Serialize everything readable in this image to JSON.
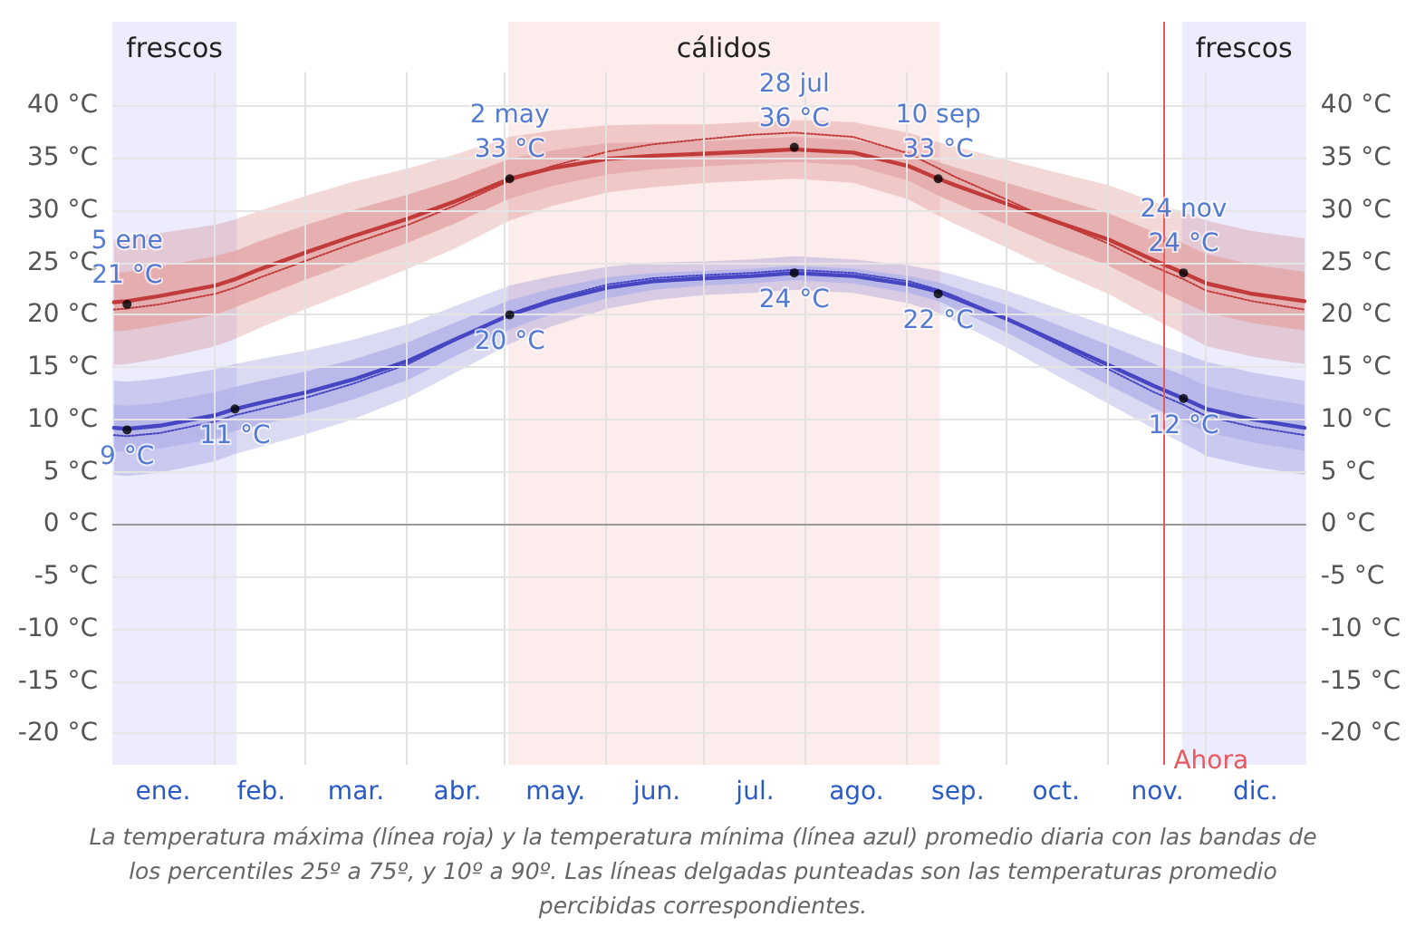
{
  "chart_data": {
    "type": "line",
    "x": [
      "--01-01",
      "--01-05",
      "--01-15",
      "--02-01",
      "--02-07",
      "--02-15",
      "--03-01",
      "--03-15",
      "--04-01",
      "--04-15",
      "--05-02",
      "--05-15",
      "--06-01",
      "--06-15",
      "--07-01",
      "--07-15",
      "--07-28",
      "--08-15",
      "--09-01",
      "--09-10",
      "--09-15",
      "--10-01",
      "--10-15",
      "--11-01",
      "--11-15",
      "--11-24",
      "--12-01",
      "--12-15",
      "--12-31"
    ],
    "series": [
      {
        "color": "#c23b3b",
        "values": [
          21.2,
          21.3,
          21.8,
          22.8,
          23.4,
          24.4,
          26.0,
          27.5,
          29.2,
          30.8,
          33.0,
          34.0,
          34.9,
          35.2,
          35.4,
          35.6,
          35.8,
          35.5,
          34.2,
          33.0,
          32.4,
          30.6,
          29.0,
          27.2,
          25.2,
          24.0,
          23.0,
          22.0,
          21.3
        ],
        "lower": [
          15.2,
          15.3,
          15.8,
          17.0,
          17.7,
          18.8,
          20.6,
          22.3,
          24.4,
          26.3,
          29.0,
          30.4,
          31.7,
          32.2,
          32.6,
          32.8,
          33.0,
          32.6,
          31.0,
          29.5,
          28.7,
          26.4,
          24.3,
          22.0,
          19.6,
          18.2,
          17.0,
          16.0,
          15.3
        ],
        "upper": [
          27.2,
          27.3,
          27.8,
          28.6,
          29.1,
          30.0,
          31.4,
          32.7,
          34.0,
          35.3,
          37.0,
          37.6,
          38.1,
          38.2,
          38.2,
          38.4,
          38.6,
          38.4,
          37.4,
          36.5,
          36.1,
          34.8,
          33.7,
          32.4,
          30.8,
          29.8,
          29.0,
          28.0,
          27.3
        ]
      },
      {
        "color": "#e4a9a9",
        "values": [
          null,
          null,
          null,
          null,
          null,
          null,
          null,
          null,
          null,
          null,
          null,
          null,
          null,
          null,
          null,
          null,
          null,
          null,
          null,
          null,
          null,
          null,
          null,
          null,
          null,
          null,
          null,
          null,
          null
        ],
        "lower": [
          18.4,
          18.5,
          19.0,
          20.0,
          20.7,
          21.7,
          23.4,
          25.0,
          26.9,
          28.7,
          31.1,
          32.3,
          33.4,
          33.9,
          34.2,
          34.4,
          34.6,
          34.3,
          32.8,
          31.4,
          30.7,
          28.6,
          26.7,
          24.7,
          22.5,
          21.2,
          20.2,
          19.2,
          18.5
        ],
        "upper": [
          24.0,
          24.1,
          24.6,
          25.6,
          26.1,
          27.1,
          28.6,
          30.0,
          31.5,
          32.9,
          34.9,
          35.7,
          36.4,
          36.5,
          36.6,
          36.8,
          37.0,
          36.7,
          35.6,
          34.6,
          34.1,
          32.6,
          31.3,
          29.7,
          27.9,
          26.8,
          25.8,
          24.8,
          24.1
        ]
      },
      {
        "color": "#4646c2",
        "values": [
          9.2,
          9.1,
          9.4,
          10.4,
          11.0,
          11.6,
          12.6,
          13.8,
          15.6,
          17.6,
          20.0,
          21.3,
          22.6,
          23.2,
          23.5,
          23.7,
          24.0,
          23.7,
          22.9,
          22.2,
          21.6,
          19.6,
          17.6,
          15.2,
          13.2,
          12.0,
          11.0,
          10.0,
          9.2
        ],
        "lower": [
          4.7,
          4.6,
          4.9,
          6.0,
          6.7,
          7.4,
          8.6,
          10.0,
          12.1,
          14.4,
          17.2,
          18.9,
          20.6,
          21.4,
          21.9,
          22.1,
          22.4,
          22.1,
          21.1,
          20.2,
          19.4,
          16.9,
          14.4,
          11.5,
          9.1,
          7.7,
          6.5,
          5.5,
          4.7
        ],
        "upper": [
          13.7,
          13.6,
          13.9,
          14.8,
          15.3,
          15.8,
          16.6,
          17.6,
          19.1,
          20.8,
          22.8,
          23.7,
          24.6,
          25.0,
          25.1,
          25.3,
          25.6,
          25.3,
          24.7,
          24.2,
          23.8,
          22.3,
          20.8,
          18.9,
          17.3,
          16.3,
          15.5,
          14.5,
          13.7
        ]
      },
      {
        "color": "#b4b4e8",
        "values": [
          null,
          null,
          null,
          null,
          null,
          null,
          null,
          null,
          null,
          null,
          null,
          null,
          null,
          null,
          null,
          null,
          null,
          null,
          null,
          null,
          null,
          null,
          null,
          null,
          null,
          null,
          null,
          null,
          null
        ],
        "lower": [
          7.0,
          6.9,
          7.2,
          8.2,
          8.9,
          9.5,
          10.6,
          11.9,
          13.8,
          16.0,
          18.6,
          20.1,
          21.6,
          22.4,
          22.8,
          23.0,
          23.3,
          23.0,
          22.1,
          21.3,
          20.6,
          18.3,
          16.0,
          13.3,
          11.1,
          9.8,
          8.8,
          7.8,
          7.0
        ],
        "upper": [
          11.4,
          11.3,
          11.6,
          12.6,
          13.1,
          13.7,
          14.6,
          15.7,
          17.4,
          19.2,
          21.4,
          22.5,
          23.6,
          24.0,
          24.2,
          24.4,
          24.7,
          24.4,
          23.7,
          23.1,
          22.6,
          20.9,
          19.2,
          17.1,
          15.3,
          14.2,
          13.2,
          12.2,
          11.4
        ]
      },
      {
        "color": "#c23b3b",
        "line_style": "dotted",
        "values": [
          20.5,
          20.6,
          21.0,
          22.0,
          22.6,
          23.6,
          25.2,
          26.8,
          28.6,
          30.4,
          32.8,
          34.2,
          35.6,
          36.3,
          36.8,
          37.2,
          37.4,
          37.0,
          35.4,
          34.0,
          33.2,
          31.0,
          29.0,
          26.8,
          24.6,
          23.4,
          22.3,
          21.3,
          20.5
        ]
      },
      {
        "color": "#4646c2",
        "line_style": "dotted",
        "values": [
          8.5,
          8.4,
          8.7,
          9.8,
          10.4,
          11.0,
          12.1,
          13.4,
          15.3,
          17.5,
          20.1,
          21.5,
          22.9,
          23.5,
          23.8,
          24.0,
          24.3,
          24.0,
          23.2,
          22.4,
          21.8,
          19.6,
          17.4,
          14.8,
          12.6,
          11.4,
          10.3,
          9.3,
          8.5
        ]
      }
    ],
    "xlim": [
      "--01-01",
      "--12-31"
    ],
    "xticks": [
      {
        "value": "--01-16",
        "label": "ene."
      },
      {
        "value": "--02-01",
        "label": null
      },
      {
        "value": "--02-15",
        "label": "feb."
      },
      {
        "value": "--03-01",
        "label": null
      },
      {
        "value": "--03-16",
        "label": "mar."
      },
      {
        "value": "--04-01",
        "label": null
      },
      {
        "value": "--04-16",
        "label": "abr."
      },
      {
        "value": "--05-01",
        "label": null
      },
      {
        "value": "--05-16",
        "label": "may."
      },
      {
        "value": "--06-01",
        "label": null
      },
      {
        "value": "--06-16",
        "label": "jun."
      },
      {
        "value": "--07-01",
        "label": null
      },
      {
        "value": "--07-16",
        "label": "jul."
      },
      {
        "value": "--08-01",
        "label": null
      },
      {
        "value": "--08-16",
        "label": "ago."
      },
      {
        "value": "--09-01",
        "label": null
      },
      {
        "value": "--09-16",
        "label": "sep."
      },
      {
        "value": "--10-01",
        "label": null
      },
      {
        "value": "--10-16",
        "label": "oct."
      },
      {
        "value": "--11-01",
        "label": null
      },
      {
        "value": "--11-16",
        "label": "nov."
      },
      {
        "value": "--12-01",
        "label": null
      },
      {
        "value": "--12-16",
        "label": "dic."
      }
    ],
    "ylim": [
      -23,
      48
    ],
    "yticks": [
      {
        "value": -20,
        "label": "-20 °C"
      },
      {
        "value": -15,
        "label": "-15 °C"
      },
      {
        "value": -10,
        "label": "-10 °C"
      },
      {
        "value": -5,
        "label": "-5 °C"
      },
      {
        "value": 0,
        "label": "0 °C"
      },
      {
        "value": 5,
        "label": "5 °C"
      },
      {
        "value": 10,
        "label": "10 °C"
      },
      {
        "value": 15,
        "label": "15 °C"
      },
      {
        "value": 20,
        "label": "20 °C"
      },
      {
        "value": 25,
        "label": "25 °C"
      },
      {
        "value": 30,
        "label": "30 °C"
      },
      {
        "value": 35,
        "label": "35 °C"
      },
      {
        "value": 40,
        "label": "40 °C"
      }
    ],
    "y2lim": [
      -23,
      48
    ],
    "y2ticks": [
      {
        "value": -20,
        "label": "-20 °C"
      },
      {
        "value": -15,
        "label": "-15 °C"
      },
      {
        "value": -10,
        "label": "-10 °C"
      },
      {
        "value": -5,
        "label": "-5 °C"
      },
      {
        "value": 0,
        "label": "0 °C"
      },
      {
        "value": 5,
        "label": "5 °C"
      },
      {
        "value": 10,
        "label": "10 °C"
      },
      {
        "value": 15,
        "label": "15 °C"
      },
      {
        "value": 20,
        "label": "20 °C"
      },
      {
        "value": 25,
        "label": "25 °C"
      },
      {
        "value": 30,
        "label": "30 °C"
      },
      {
        "value": 35,
        "label": "35 °C"
      },
      {
        "value": 40,
        "label": "40 °C"
      }
    ],
    "bands": [
      {
        "axis": "x",
        "from": "--01-01",
        "to": "--02-07",
        "label": "frescos",
        "color": "#ececfd"
      },
      {
        "axis": "x",
        "from": "--05-02",
        "to": "--09-10",
        "label": "cálidos",
        "color": "#fdecec"
      },
      {
        "axis": "x",
        "from": "--11-24",
        "to": "--12-31",
        "label": "frescos",
        "color": "#ececfd"
      }
    ],
    "ref_lines": [
      {
        "axis": "x",
        "value": "--11-18",
        "label": "Ahora",
        "color": "#e8585f"
      }
    ],
    "annotations": [
      {
        "text": "5 ene\n21 °C",
        "x": "--01-05",
        "y": 21
      },
      {
        "text": "9 °C",
        "x": "--01-05",
        "y": 9
      },
      {
        "text": "11 °C",
        "x": "--02-07",
        "y": 11
      },
      {
        "text": "2 may\n33 °C",
        "x": "--05-02",
        "y": 33
      },
      {
        "text": "20 °C",
        "x": "--05-02",
        "y": 20
      },
      {
        "text": "28 jul\n36 °C",
        "x": "--07-28",
        "y": 36
      },
      {
        "text": "24 °C",
        "x": "--07-28",
        "y": 24
      },
      {
        "text": "10 sep\n33 °C",
        "x": "--09-10",
        "y": 33
      },
      {
        "text": "22 °C",
        "x": "--09-10",
        "y": 22
      },
      {
        "text": "24 nov\n24 °C",
        "x": "--11-24",
        "y": 24
      },
      {
        "text": "12 °C",
        "x": "--11-24",
        "y": 12
      },
      "La temperatura máxima (línea roja) y la temperatura mínima (línea azul) promedio diaria con las bandas de los percentiles 25º a 75º, y 10º a 90º. Las líneas delgadas punteadas son las temperaturas promedio percibidas correspondientes."
    ],
    "grid": true,
    "marker": "none"
  }
}
